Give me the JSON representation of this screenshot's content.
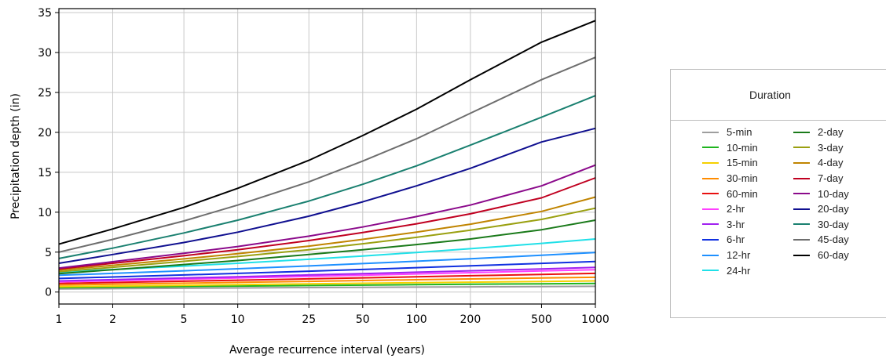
{
  "chart_data": {
    "type": "line",
    "xlabel": "Average recurrence interval (years)",
    "ylabel": "Precipitation depth (in)",
    "x_scale": "log",
    "x": [
      1,
      2,
      5,
      10,
      25,
      50,
      100,
      200,
      500,
      1000
    ],
    "x_tick_labels": [
      "1",
      "2",
      "5",
      "10",
      "25",
      "50",
      "100",
      "200",
      "500",
      "1000"
    ],
    "xlim": [
      1,
      1000
    ],
    "ylim": [
      -1.5,
      35.5
    ],
    "y_ticks": [
      0,
      5,
      10,
      15,
      20,
      25,
      30,
      35
    ],
    "grid": true,
    "legend_position": "right",
    "legend_title": "Duration",
    "series": [
      {
        "name": "5-min",
        "color": "#9e9e9e",
        "values": [
          0.38,
          0.42,
          0.47,
          0.51,
          0.56,
          0.59,
          0.62,
          0.65,
          0.69,
          0.72
        ]
      },
      {
        "name": "10-min",
        "color": "#1fb51f",
        "values": [
          0.55,
          0.61,
          0.69,
          0.75,
          0.82,
          0.87,
          0.92,
          0.97,
          1.03,
          1.08
        ]
      },
      {
        "name": "15-min",
        "color": "#f5d000",
        "values": [
          0.67,
          0.75,
          0.85,
          0.93,
          1.03,
          1.1,
          1.17,
          1.24,
          1.33,
          1.4
        ]
      },
      {
        "name": "30-min",
        "color": "#ff8c00",
        "values": [
          0.88,
          0.98,
          1.11,
          1.21,
          1.34,
          1.44,
          1.54,
          1.64,
          1.76,
          1.85
        ]
      },
      {
        "name": "60-min",
        "color": "#e81010",
        "values": [
          1.08,
          1.2,
          1.36,
          1.48,
          1.65,
          1.78,
          1.91,
          2.04,
          2.21,
          2.34
        ]
      },
      {
        "name": "2-hr",
        "color": "#ff40ff",
        "values": [
          1.28,
          1.42,
          1.61,
          1.76,
          1.96,
          2.11,
          2.27,
          2.43,
          2.64,
          2.8
        ]
      },
      {
        "name": "3-hr",
        "color": "#a020f0",
        "values": [
          1.4,
          1.55,
          1.76,
          1.92,
          2.14,
          2.31,
          2.48,
          2.66,
          2.9,
          3.08
        ]
      },
      {
        "name": "6-hr",
        "color": "#1030e0",
        "values": [
          1.7,
          1.89,
          2.14,
          2.34,
          2.61,
          2.83,
          3.05,
          3.28,
          3.59,
          3.83
        ]
      },
      {
        "name": "12-hr",
        "color": "#1e90ff",
        "values": [
          2.1,
          2.34,
          2.66,
          2.92,
          3.27,
          3.56,
          3.86,
          4.17,
          4.6,
          4.95
        ]
      },
      {
        "name": "24-hr",
        "color": "#20e0e8",
        "values": [
          2.5,
          2.82,
          3.25,
          3.6,
          4.1,
          4.52,
          4.96,
          5.43,
          6.1,
          6.65
        ]
      },
      {
        "name": "2-day",
        "color": "#1a7a1a",
        "values": [
          2.3,
          2.8,
          3.45,
          3.95,
          4.7,
          5.3,
          5.95,
          6.65,
          7.8,
          9.0
        ]
      },
      {
        "name": "3-day",
        "color": "#9aa010",
        "values": [
          2.55,
          3.1,
          3.85,
          4.45,
          5.3,
          6.05,
          6.85,
          7.75,
          9.1,
          10.5
        ]
      },
      {
        "name": "4-day",
        "color": "#c08400",
        "values": [
          2.75,
          3.35,
          4.15,
          4.8,
          5.75,
          6.6,
          7.5,
          8.5,
          10.1,
          11.9
        ]
      },
      {
        "name": "7-day",
        "color": "#c00020",
        "values": [
          2.9,
          3.6,
          4.55,
          5.3,
          6.45,
          7.45,
          8.55,
          9.8,
          11.8,
          14.3
        ]
      },
      {
        "name": "10-day",
        "color": "#8b0a8b",
        "values": [
          3.0,
          3.8,
          4.85,
          5.7,
          7.0,
          8.15,
          9.45,
          10.9,
          13.3,
          15.9
        ]
      },
      {
        "name": "20-day",
        "color": "#101090",
        "values": [
          3.6,
          4.7,
          6.2,
          7.5,
          9.5,
          11.3,
          13.3,
          15.5,
          18.8,
          20.5
        ]
      },
      {
        "name": "30-day",
        "color": "#1a8070",
        "values": [
          4.2,
          5.5,
          7.4,
          9.0,
          11.4,
          13.5,
          15.8,
          18.4,
          21.9,
          24.6
        ]
      },
      {
        "name": "45-day",
        "color": "#6e6e6e",
        "values": [
          5.0,
          6.6,
          8.9,
          10.9,
          13.8,
          16.4,
          19.2,
          22.4,
          26.6,
          29.4
        ]
      },
      {
        "name": "60-day",
        "color": "#000000",
        "values": [
          6.0,
          7.9,
          10.6,
          13.0,
          16.5,
          19.6,
          22.9,
          26.6,
          31.3,
          34.0
        ]
      }
    ]
  }
}
